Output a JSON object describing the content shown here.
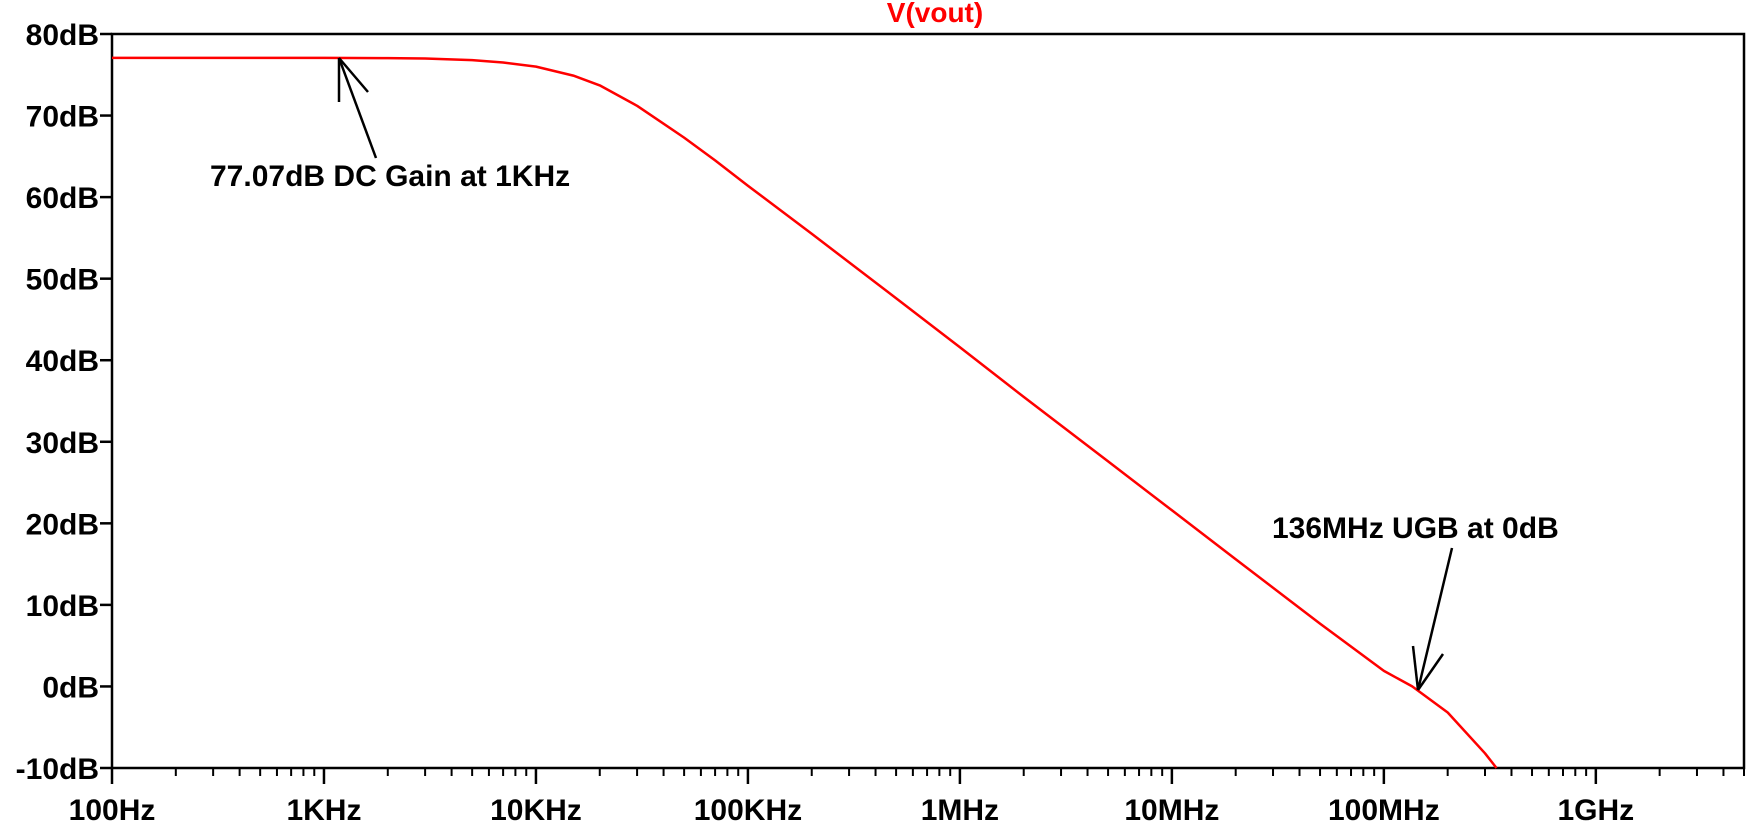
{
  "chart_data": {
    "type": "line",
    "title": "V(vout)",
    "title_color": "#ff0000",
    "xscale": "log",
    "x_ticks": [
      {
        "value": 100,
        "label": "100Hz"
      },
      {
        "value": 1000,
        "label": "1KHz"
      },
      {
        "value": 10000,
        "label": "10KHz"
      },
      {
        "value": 100000,
        "label": "100KHz"
      },
      {
        "value": 1000000,
        "label": "1MHz"
      },
      {
        "value": 10000000,
        "label": "10MHz"
      },
      {
        "value": 100000000,
        "label": "100MHz"
      },
      {
        "value": 1000000000,
        "label": "1GHz"
      }
    ],
    "y_ticks": [
      {
        "value": 80,
        "label": "80dB"
      },
      {
        "value": 70,
        "label": "70dB"
      },
      {
        "value": 60,
        "label": "60dB"
      },
      {
        "value": 50,
        "label": "50dB"
      },
      {
        "value": 40,
        "label": "40dB"
      },
      {
        "value": 30,
        "label": "30dB"
      },
      {
        "value": 20,
        "label": "20dB"
      },
      {
        "value": 10,
        "label": "10dB"
      },
      {
        "value": 0,
        "label": "0dB"
      },
      {
        "value": -10,
        "label": "-10dB"
      }
    ],
    "xlim": [
      100,
      5000000000
    ],
    "ylim": [
      -10,
      80
    ],
    "grid": false,
    "series": [
      {
        "name": "V(vout)",
        "color": "#ff0000",
        "x": [
          100,
          1000,
          2000,
          3000,
          5000,
          7000,
          10000,
          15000,
          20000,
          30000,
          50000,
          70000,
          100000,
          200000,
          500000,
          1000000,
          2000000,
          5000000,
          10000000,
          20000000,
          50000000,
          100000000,
          136000000,
          200000000,
          300000000,
          340000000
        ],
        "y": [
          77.07,
          77.07,
          77.05,
          77.0,
          76.8,
          76.5,
          76.0,
          74.9,
          73.7,
          71.2,
          67.3,
          64.5,
          61.4,
          55.5,
          47.6,
          41.6,
          35.5,
          27.6,
          21.6,
          15.6,
          7.7,
          1.9,
          0.0,
          -3.2,
          -8.2,
          -10.0
        ]
      }
    ],
    "annotations": [
      {
        "text": "77.07dB DC Gain at 1KHz",
        "point": {
          "x": 1000,
          "y": 77.07
        }
      },
      {
        "text": "136MHz UGB at 0dB",
        "point": {
          "x": 136000000,
          "y": 0
        }
      }
    ]
  }
}
